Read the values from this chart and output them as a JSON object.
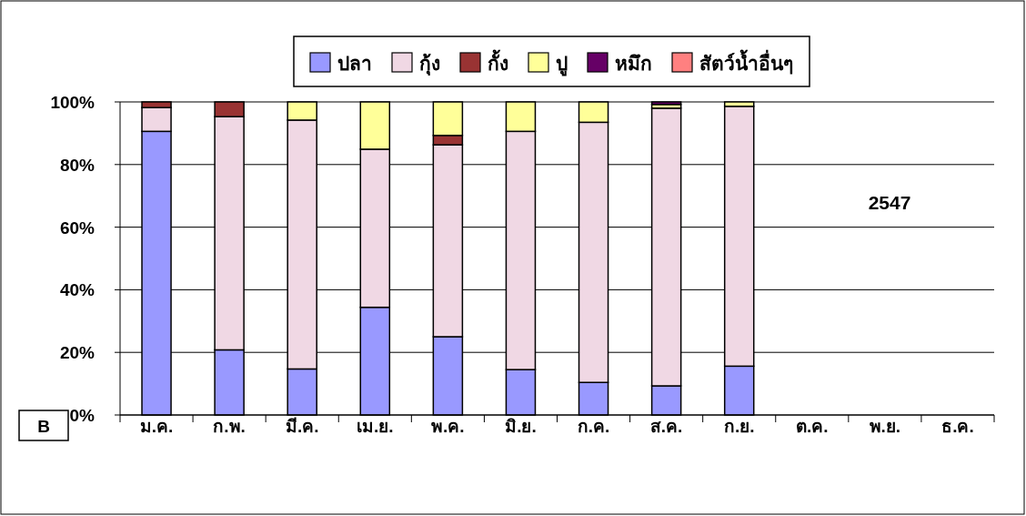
{
  "chart_data": {
    "type": "bar",
    "stacked": true,
    "categories": [
      "ม.ค.",
      "ก.พ.",
      "มี.ค.",
      "เม.ย.",
      "พ.ค.",
      "มิ.ย.",
      "ก.ค.",
      "ส.ค.",
      "ก.ย.",
      "ต.ค.",
      "พ.ย.",
      "ธ.ค."
    ],
    "series": [
      {
        "name": "ปลา",
        "color": "#9999ff",
        "values": [
          90.6,
          20.8,
          14.7,
          34.4,
          25.0,
          14.5,
          10.4,
          9.3,
          15.6,
          null,
          null,
          null
        ]
      },
      {
        "name": "กุ้ง",
        "color": "#f0d8e4",
        "values": [
          7.6,
          74.5,
          79.5,
          50.5,
          61.3,
          76.1,
          83.1,
          88.7,
          83.0,
          null,
          null,
          null
        ]
      },
      {
        "name": "กั้ง",
        "color": "#993333",
        "values": [
          1.8,
          4.7,
          0,
          0,
          3.0,
          0,
          0,
          0,
          0,
          null,
          null,
          null
        ]
      },
      {
        "name": "ปู",
        "color": "#ffff99",
        "values": [
          0,
          0,
          5.8,
          15.1,
          10.7,
          9.4,
          6.5,
          1.2,
          1.4,
          null,
          null,
          null
        ]
      },
      {
        "name": "หมึก",
        "color": "#660066",
        "values": [
          0,
          0,
          0,
          0,
          0,
          0,
          0,
          0.8,
          0,
          null,
          null,
          null
        ]
      },
      {
        "name": "สัตว์น้ำอื่นๆ",
        "color": "#ff8080",
        "values": [
          0,
          0,
          0,
          0,
          0,
          0,
          0,
          0,
          0,
          null,
          null,
          null
        ]
      }
    ],
    "ylim": [
      0,
      100
    ],
    "yticks": [
      {
        "value": 0,
        "label": "0%"
      },
      {
        "value": 20,
        "label": "20%"
      },
      {
        "value": 40,
        "label": "40%"
      },
      {
        "value": 60,
        "label": "60%"
      },
      {
        "value": 80,
        "label": "80%"
      },
      {
        "value": 100,
        "label": "100%"
      }
    ],
    "grid": "y",
    "legend": "top",
    "annotations": [
      "2547",
      "B"
    ]
  }
}
